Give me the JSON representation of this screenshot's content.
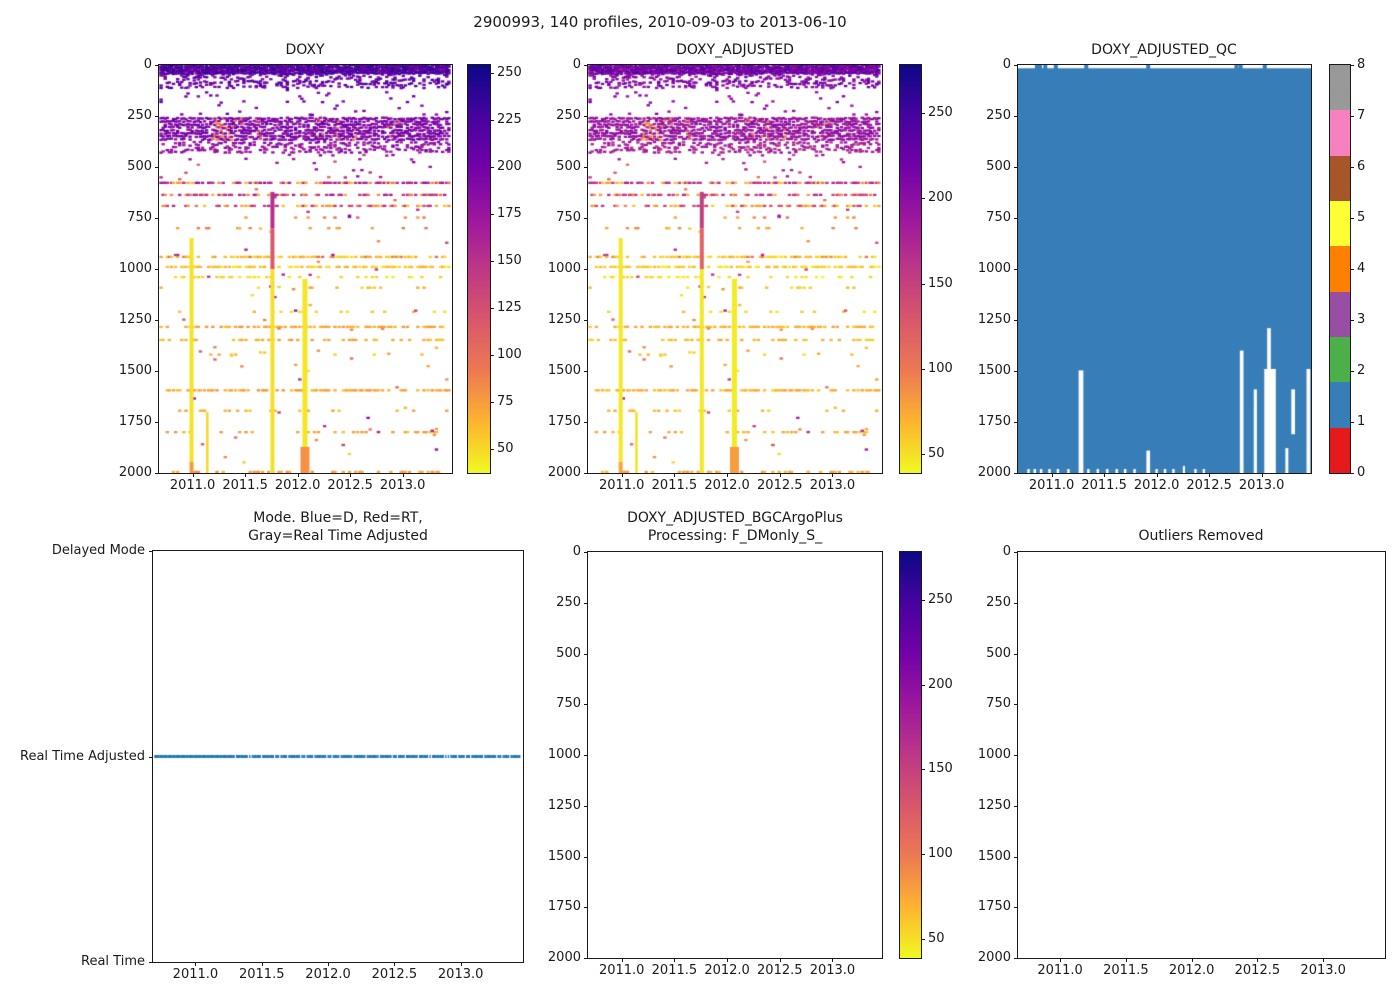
{
  "figure": {
    "suptitle": "2900993, 140 profiles, 2010-09-03 to 2013-06-10",
    "background": "#ffffff"
  },
  "panels": {
    "doxy": {
      "title": "DOXY"
    },
    "doxy_adjusted": {
      "title": "DOXY_ADJUSTED"
    },
    "qc": {
      "title": "DOXY_ADJUSTED_QC"
    },
    "mode": {
      "title_line1": "Mode. Blue=D, Red=RT,",
      "title_line2": "Gray=Real Time Adjusted",
      "y_categories": [
        "Delayed Mode",
        "Real Time Adjusted",
        "Real Time"
      ]
    },
    "bgc": {
      "title_line1": "DOXY_ADJUSTED_BGCArgoPlus",
      "title_line2": "Processing: F_DMonly_S_"
    },
    "outliers": {
      "title": "Outliers Removed"
    }
  },
  "colors": {
    "plasma_stops": [
      [
        0,
        13,
        8,
        135
      ],
      [
        0.125,
        70,
        3,
        159
      ],
      [
        0.25,
        114,
        1,
        168
      ],
      [
        0.375,
        156,
        23,
        158
      ],
      [
        0.5,
        189,
        55,
        134
      ],
      [
        0.625,
        216,
        87,
        107
      ],
      [
        0.75,
        237,
        121,
        83
      ],
      [
        0.875,
        253,
        180,
        47
      ],
      [
        1,
        240,
        249,
        33
      ]
    ],
    "qc_palette": [
      "#e41a1c",
      "#377eb8",
      "#4daf4a",
      "#984ea3",
      "#ff7f00",
      "#ffff33",
      "#a65628",
      "#f781bf",
      "#999999"
    ],
    "qc_fill": "#377eb8",
    "mode_line": "#1f77b4",
    "axis": "#1a1a1a"
  },
  "chart_data": {
    "type": "scatter",
    "title": "2900993, 140 profiles, 2010-09-03 to 2013-06-10",
    "n_profiles": 140,
    "time_range": [
      2010.68,
      2013.47
    ],
    "profile_time_span": [
      2010.7,
      2013.44
    ],
    "depth_range": [
      0,
      2000
    ],
    "x_tick_values": [
      2011.0,
      2011.5,
      2012.0,
      2012.5,
      2013.0
    ],
    "x_ticks": [
      "2011.0",
      "2011.5",
      "2012.0",
      "2012.5",
      "2013.0"
    ],
    "depth_tick_values": [
      0,
      250,
      500,
      750,
      1000,
      1250,
      1500,
      1750,
      2000
    ],
    "depth_ticks": [
      "0",
      "250",
      "500",
      "750",
      "1000",
      "1250",
      "1500",
      "1750",
      "2000"
    ],
    "doxy_colorbar": {
      "vmin": 37,
      "vmax": 254,
      "ticks": [
        250,
        225,
        200,
        175,
        150,
        125,
        100,
        75,
        50
      ]
    },
    "adjusted_colorbar": {
      "vmin": 39,
      "vmax": 278,
      "ticks": [
        250,
        200,
        150,
        100,
        50
      ]
    },
    "qc_colorbar": {
      "ticks": [
        0,
        1,
        2,
        3,
        4,
        5,
        6,
        7,
        8
      ]
    },
    "doxy_pattern": {
      "bands": [
        {
          "d0": 0,
          "d1": 45,
          "rows": 6,
          "density": 0.9,
          "v0": 195,
          "v1": 242
        },
        {
          "d0": 45,
          "d1": 115,
          "rows": 7,
          "density": 0.28,
          "v0": 190,
          "v1": 228
        },
        {
          "d0": 115,
          "d1": 250,
          "rows": 9,
          "density": 0.03,
          "v0": 185,
          "v1": 215
        },
        {
          "d0": 255,
          "d1": 372,
          "rows": 8,
          "density": 0.72,
          "v0": 176,
          "v1": 208,
          "patches": [
            {
              "t0": 2011.18,
              "t1": 2011.47,
              "p": 0.3,
              "v0": 80,
              "v1": 112
            },
            {
              "t0": 2011.6,
              "t1": 2011.66,
              "p": 0.25,
              "v0": 118,
              "v1": 150
            },
            {
              "t0": 2012.18,
              "t1": 2012.4,
              "p": 0.22,
              "v0": 80,
              "v1": 112
            },
            {
              "t0": 2012.5,
              "t1": 2012.57,
              "p": 0.28,
              "v0": 88,
              "v1": 115
            },
            {
              "t0": 2012.86,
              "t1": 2012.97,
              "p": 0.18,
              "v0": 85,
              "v1": 112
            }
          ]
        },
        {
          "d0": 375,
          "d1": 432,
          "rows": 5,
          "density": 0.3,
          "v0": 162,
          "v1": 198
        },
        {
          "d0": 435,
          "d1": 560,
          "rows": 7,
          "density": 0.025,
          "v0": 150,
          "v1": 200
        }
      ],
      "rows": [
        {
          "d": 578,
          "density": 0.6,
          "v0": 148,
          "v1": 180,
          "alt_p": 0.35,
          "alt_v0": 55,
          "alt_v1": 100
        },
        {
          "d": 637,
          "density": 0.5,
          "v0": 140,
          "v1": 172,
          "alt_p": 0.35,
          "alt_v0": 60,
          "alt_v1": 105
        },
        {
          "d": 691,
          "density": 0.42,
          "v0": 120,
          "v1": 160,
          "alt_p": 0.5,
          "alt_v0": 55,
          "alt_v1": 95
        },
        {
          "d": 748,
          "density": 0.07,
          "v0": 70,
          "v1": 110
        },
        {
          "d": 800,
          "density": 0.05,
          "v0": 70,
          "v1": 105
        },
        {
          "d": 941,
          "density": 0.55,
          "v0": 45,
          "v1": 75,
          "alt_p": 0.15,
          "alt_v0": 88,
          "alt_v1": 108
        },
        {
          "d": 990,
          "density": 0.55,
          "v0": 42,
          "v1": 70
        },
        {
          "d": 1040,
          "density": 0.2,
          "v0": 40,
          "v1": 58
        },
        {
          "d": 1092,
          "density": 0.06,
          "v0": 45,
          "v1": 70
        },
        {
          "d": 1210,
          "density": 0.08,
          "v0": 45,
          "v1": 70
        },
        {
          "d": 1284,
          "density": 0.5,
          "v0": 58,
          "v1": 80
        },
        {
          "d": 1348,
          "density": 0.32,
          "v0": 56,
          "v1": 78
        },
        {
          "d": 1420,
          "density": 0.06,
          "v0": 50,
          "v1": 72
        },
        {
          "d": 1595,
          "density": 0.5,
          "v0": 60,
          "v1": 82
        },
        {
          "d": 1695,
          "density": 0.13,
          "v0": 55,
          "v1": 78
        },
        {
          "d": 1800,
          "density": 0.26,
          "v0": 58,
          "v1": 80
        },
        {
          "d": 1995,
          "density": 0.3,
          "v0": 62,
          "v1": 85
        }
      ],
      "spikes": [
        {
          "t": 2010.99,
          "w": 4,
          "segments": [
            {
              "d0": 848,
              "d1": 1945,
              "v": 46
            },
            {
              "d0": 1945,
              "d1": 2000,
              "v": 76
            }
          ]
        },
        {
          "t": 2011.14,
          "w": 2.5,
          "segments": [
            {
              "d0": 1700,
              "d1": 2000,
              "v": 50
            }
          ]
        },
        {
          "t": 2011.76,
          "w": 4,
          "segments": [
            {
              "d0": 622,
              "d1": 800,
              "v": 152
            },
            {
              "d0": 800,
              "d1": 1000,
              "v": 118
            },
            {
              "d0": 1000,
              "d1": 2000,
              "v": 47
            }
          ]
        },
        {
          "t": 2012.07,
          "w": 5,
          "segments": [
            {
              "d0": 1048,
              "d1": 1872,
              "v": 45
            }
          ]
        },
        {
          "t": 2012.07,
          "w": 9,
          "segments": [
            {
              "d0": 1872,
              "d1": 2000,
              "v": 80
            }
          ]
        }
      ],
      "speckles": {
        "n": 80,
        "d0": 430,
        "d1": 1950,
        "v0": 42,
        "v1": 190
      }
    },
    "qc_pattern": {
      "fill_qc_value": 1,
      "fill_depth_top": 16,
      "top_blue_notches": [
        2010.86,
        2010.89,
        2010.94,
        2011.04,
        2011.33,
        2011.92,
        2012.76,
        2012.8,
        2013.03
      ],
      "gaps": [
        {
          "t": 2011.28,
          "w": 0.045,
          "d0": 1497,
          "d1": 2000
        },
        {
          "t": 2011.92,
          "w": 0.035,
          "d0": 1890,
          "d1": 2000
        },
        {
          "t": 2012.26,
          "w": 0.02,
          "d0": 1965,
          "d1": 2000
        },
        {
          "t": 2012.81,
          "w": 0.035,
          "d0": 1400,
          "d1": 2000
        },
        {
          "t": 2012.94,
          "w": 0.03,
          "d0": 1590,
          "d1": 2000
        },
        {
          "t": 2013.07,
          "w": 0.035,
          "d0": 1290,
          "d1": 1500
        },
        {
          "t": 2013.08,
          "w": 0.11,
          "d0": 1490,
          "d1": 2000
        },
        {
          "t": 2013.24,
          "w": 0.028,
          "d0": 1878,
          "d1": 2000
        },
        {
          "t": 2013.3,
          "w": 0.035,
          "d0": 1590,
          "d1": 1810
        },
        {
          "t": 2013.445,
          "w": 0.035,
          "d0": 1490,
          "d1": 2000
        }
      ],
      "bottom_notches": [
        2010.78,
        2010.84,
        2010.9,
        2010.98,
        2011.06,
        2011.16,
        2011.35,
        2011.44,
        2011.53,
        2011.62,
        2011.7,
        2011.79,
        2012.0,
        2012.08,
        2012.16,
        2012.37,
        2012.45
      ]
    },
    "mode_pattern": {
      "category": "Real Time Adjusted"
    },
    "bgc_pattern": {
      "empty": true
    },
    "outliers_pattern": {
      "empty": true
    }
  }
}
